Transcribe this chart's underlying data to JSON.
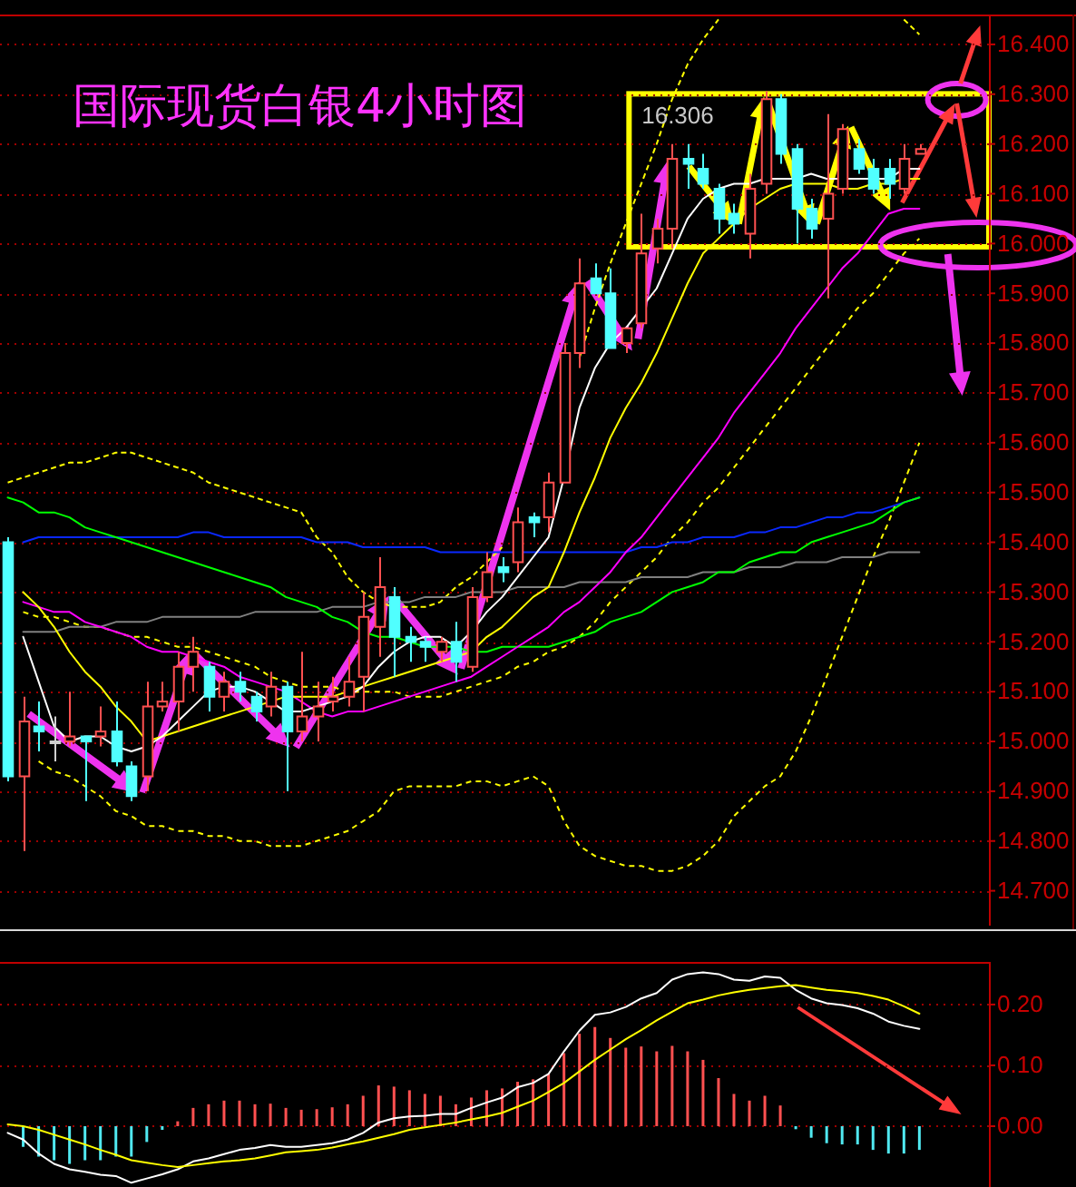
{
  "chart_data": [
    {
      "type": "candlestick",
      "title": "国际现货白银4小时图",
      "categories": [
        null,
        null,
        null,
        null,
        null,
        null,
        null,
        null,
        null,
        null,
        null,
        null,
        null,
        null,
        null,
        null,
        null,
        null,
        null,
        null,
        null,
        null,
        null,
        null,
        null,
        null,
        null,
        null,
        null,
        null,
        null,
        null,
        null,
        null,
        null,
        null,
        null,
        null,
        null,
        null,
        null,
        null,
        null,
        null,
        null,
        null,
        null,
        null,
        null,
        null,
        null,
        null,
        null,
        null,
        null,
        null,
        null,
        null,
        null,
        null
      ],
      "ohlc": [
        [
          15.4,
          15.41,
          14.92,
          14.93
        ],
        [
          14.93,
          15.09,
          14.78,
          15.04
        ],
        [
          15.03,
          15.08,
          14.98,
          15.02
        ],
        [
          15.0,
          15.05,
          14.96,
          15.0
        ],
        [
          15.0,
          15.1,
          14.99,
          15.01
        ],
        [
          15.01,
          15.01,
          14.88,
          15.0
        ],
        [
          15.01,
          15.07,
          14.99,
          15.02
        ],
        [
          15.02,
          15.08,
          14.95,
          14.96
        ],
        [
          14.95,
          14.96,
          14.88,
          14.89
        ],
        [
          14.93,
          15.12,
          14.9,
          15.07
        ],
        [
          15.07,
          15.12,
          15.06,
          15.08
        ],
        [
          15.08,
          15.18,
          15.02,
          15.15
        ],
        [
          15.15,
          15.21,
          15.1,
          15.18
        ],
        [
          15.15,
          15.16,
          15.06,
          15.09
        ],
        [
          15.09,
          15.14,
          15.06,
          15.12
        ],
        [
          15.12,
          15.14,
          15.08,
          15.1
        ],
        [
          15.09,
          15.1,
          15.04,
          15.06
        ],
        [
          15.07,
          15.14,
          15.05,
          15.11
        ],
        [
          15.11,
          15.12,
          14.9,
          15.02
        ],
        [
          15.02,
          15.18,
          15.0,
          15.05
        ],
        [
          15.05,
          15.12,
          15.0,
          15.07
        ],
        [
          15.08,
          15.13,
          15.06,
          15.09
        ],
        [
          15.09,
          15.17,
          15.07,
          15.12
        ],
        [
          15.13,
          15.3,
          15.06,
          15.25
        ],
        [
          15.23,
          15.37,
          15.17,
          15.31
        ],
        [
          15.29,
          15.31,
          15.13,
          15.21
        ],
        [
          15.21,
          15.23,
          15.16,
          15.2
        ],
        [
          15.2,
          15.21,
          15.16,
          15.19
        ],
        [
          15.18,
          15.21,
          15.16,
          15.2
        ],
        [
          15.2,
          15.24,
          15.12,
          15.16
        ],
        [
          15.15,
          15.31,
          15.14,
          15.29
        ],
        [
          15.29,
          15.38,
          15.28,
          15.34
        ],
        [
          15.35,
          15.37,
          15.32,
          15.34
        ],
        [
          15.36,
          15.47,
          15.34,
          15.44
        ],
        [
          15.45,
          15.46,
          15.41,
          15.44
        ],
        [
          15.45,
          15.54,
          15.42,
          15.52
        ],
        [
          15.52,
          15.8,
          15.52,
          15.78
        ],
        [
          15.78,
          15.97,
          15.75,
          15.92
        ],
        [
          15.93,
          15.96,
          15.9,
          15.9
        ],
        [
          15.9,
          15.95,
          15.79,
          15.79
        ],
        [
          15.8,
          15.83,
          15.78,
          15.83
        ],
        [
          15.84,
          16.06,
          15.83,
          15.98
        ],
        [
          15.99,
          16.05,
          15.96,
          16.03
        ],
        [
          16.03,
          16.2,
          15.99,
          16.17
        ],
        [
          16.17,
          16.2,
          16.11,
          16.16
        ],
        [
          16.15,
          16.18,
          16.11,
          16.12
        ],
        [
          16.11,
          16.12,
          16.02,
          16.05
        ],
        [
          16.06,
          16.08,
          16.02,
          16.04
        ],
        [
          16.02,
          16.14,
          15.97,
          16.11
        ],
        [
          16.12,
          16.306,
          16.1,
          16.29
        ],
        [
          16.29,
          16.3,
          16.16,
          16.18
        ],
        [
          16.19,
          16.2,
          16.0,
          16.07
        ],
        [
          16.07,
          16.09,
          16.01,
          16.03
        ],
        [
          16.05,
          16.26,
          15.89,
          16.1
        ],
        [
          16.11,
          16.24,
          16.1,
          16.23
        ],
        [
          16.19,
          16.21,
          16.14,
          16.15
        ],
        [
          16.15,
          16.17,
          16.1,
          16.11
        ],
        [
          16.15,
          16.17,
          16.09,
          16.12
        ],
        [
          16.11,
          16.2,
          16.1,
          16.17
        ],
        [
          16.18,
          16.2,
          16.18,
          16.19
        ]
      ],
      "series": [
        {
          "type": "line",
          "color": "#ffff00",
          "line_style": "dashed",
          "values": [
            15.52,
            15.53,
            15.54,
            15.55,
            15.56,
            15.56,
            15.57,
            15.58,
            15.58,
            15.57,
            15.56,
            15.55,
            15.54,
            15.52,
            15.51,
            15.5,
            15.49,
            15.48,
            15.47,
            15.46,
            15.41,
            15.38,
            15.33,
            15.3,
            15.28,
            15.27,
            15.27,
            15.27,
            15.28,
            15.31,
            15.33,
            15.36,
            15.39,
            null,
            null,
            null,
            null,
            15.77,
            15.87,
            15.96,
            16.04,
            16.12,
            16.2,
            16.29,
            16.36,
            16.41,
            16.45,
            null,
            null,
            null,
            null,
            null,
            null,
            null,
            null,
            null,
            null,
            null,
            16.45,
            16.42
          ]
        },
        {
          "type": "line",
          "color": "#ffff00",
          "line_style": "dashed",
          "values": [
            null,
            null,
            14.96,
            14.94,
            14.93,
            14.91,
            14.89,
            14.86,
            14.85,
            14.83,
            14.83,
            14.82,
            14.82,
            14.81,
            14.81,
            14.8,
            14.8,
            14.79,
            14.79,
            14.79,
            14.8,
            14.81,
            14.82,
            14.84,
            14.86,
            14.9,
            14.91,
            14.91,
            14.91,
            14.91,
            14.92,
            14.92,
            14.91,
            14.92,
            14.93,
            14.91,
            14.84,
            14.79,
            14.77,
            14.76,
            14.75,
            14.75,
            14.74,
            14.74,
            14.75,
            14.77,
            14.8,
            14.85,
            14.88,
            14.91,
            14.93,
            14.98,
            15.05,
            15.13,
            15.21,
            15.29,
            15.37,
            15.44,
            15.52,
            15.6
          ]
        },
        {
          "type": "line",
          "color": "#ffff00",
          "line_style": "dashed",
          "values": [
            null,
            15.26,
            15.25,
            15.25,
            15.24,
            15.23,
            15.23,
            15.22,
            15.21,
            15.21,
            15.2,
            15.19,
            15.19,
            15.18,
            15.17,
            15.16,
            15.15,
            15.13,
            15.12,
            15.11,
            15.11,
            15.11,
            15.1,
            15.1,
            15.1,
            15.1,
            15.09,
            15.09,
            15.09,
            15.1,
            15.11,
            15.12,
            15.13,
            15.15,
            15.16,
            15.18,
            15.19,
            15.21,
            15.24,
            15.28,
            15.31,
            15.34,
            15.37,
            15.41,
            15.44,
            15.48,
            15.51,
            15.55,
            15.59,
            15.63,
            15.67,
            15.71,
            15.75,
            15.79,
            15.83,
            15.87,
            15.9,
            15.94,
            15.98,
            16.01
          ]
        },
        {
          "type": "line",
          "color": "#808080",
          "values": [
            null,
            15.22,
            15.22,
            15.22,
            15.23,
            15.23,
            15.23,
            15.24,
            15.24,
            15.24,
            15.25,
            15.25,
            15.25,
            15.25,
            15.25,
            15.25,
            15.26,
            15.26,
            15.26,
            15.26,
            15.26,
            15.27,
            15.27,
            15.27,
            15.28,
            15.28,
            15.28,
            15.29,
            15.29,
            15.29,
            15.3,
            15.3,
            15.3,
            15.31,
            15.31,
            15.31,
            15.31,
            15.32,
            15.32,
            15.32,
            15.32,
            15.33,
            15.33,
            15.33,
            15.33,
            15.34,
            15.34,
            15.34,
            15.35,
            15.35,
            15.35,
            15.36,
            15.36,
            15.36,
            15.37,
            15.37,
            15.37,
            15.38,
            15.38,
            15.38
          ]
        },
        {
          "type": "line",
          "color": "#0a28ff",
          "values": [
            null,
            15.4,
            15.41,
            15.41,
            15.41,
            15.41,
            15.41,
            15.41,
            15.41,
            15.41,
            15.41,
            15.41,
            15.42,
            15.42,
            15.41,
            15.41,
            15.41,
            15.41,
            15.41,
            15.41,
            15.4,
            15.4,
            15.4,
            15.39,
            15.39,
            15.39,
            15.39,
            15.39,
            15.38,
            15.38,
            15.38,
            15.38,
            15.38,
            15.38,
            15.38,
            15.38,
            15.38,
            15.38,
            15.38,
            15.38,
            15.38,
            15.39,
            15.39,
            15.4,
            15.4,
            15.41,
            15.41,
            15.41,
            15.42,
            15.42,
            15.43,
            15.43,
            15.44,
            15.45,
            15.45,
            15.46,
            15.46,
            15.47,
            15.48,
            15.49
          ]
        },
        {
          "type": "line",
          "color": "#00ff00",
          "values": [
            15.49,
            15.48,
            15.46,
            15.46,
            15.45,
            15.43,
            15.42,
            15.41,
            15.4,
            15.39,
            15.38,
            15.37,
            15.36,
            15.35,
            15.34,
            15.33,
            15.32,
            15.31,
            15.29,
            15.28,
            15.27,
            15.25,
            15.24,
            15.22,
            15.21,
            15.21,
            15.2,
            15.19,
            15.19,
            15.19,
            15.18,
            15.18,
            15.19,
            15.19,
            15.19,
            15.19,
            15.2,
            15.21,
            15.22,
            15.24,
            15.25,
            15.26,
            15.28,
            15.3,
            15.31,
            15.32,
            15.34,
            15.34,
            15.36,
            15.37,
            15.38,
            15.38,
            15.4,
            15.41,
            15.42,
            15.43,
            15.44,
            15.46,
            15.48,
            15.49
          ]
        },
        {
          "type": "line",
          "color": "#ff00ff",
          "values": [
            null,
            15.28,
            15.27,
            15.26,
            15.26,
            15.24,
            15.23,
            15.22,
            15.21,
            15.19,
            15.18,
            15.18,
            15.17,
            15.16,
            15.15,
            15.13,
            15.12,
            15.11,
            15.1,
            15.08,
            15.06,
            15.05,
            15.06,
            15.06,
            15.07,
            15.08,
            15.09,
            15.1,
            15.11,
            15.12,
            15.13,
            15.15,
            15.17,
            15.19,
            15.21,
            15.23,
            15.26,
            15.28,
            15.31,
            15.34,
            15.38,
            15.41,
            15.45,
            15.49,
            15.53,
            15.57,
            15.61,
            15.66,
            15.7,
            15.74,
            15.78,
            15.83,
            15.87,
            15.91,
            15.95,
            15.98,
            16.02,
            16.06,
            16.07,
            16.07
          ]
        },
        {
          "type": "line",
          "color": "#ffff00",
          "values": [
            null,
            15.3,
            15.27,
            15.23,
            15.18,
            15.14,
            15.11,
            15.07,
            15.04,
            15.0,
            15.01,
            15.02,
            15.03,
            15.04,
            15.05,
            15.06,
            15.07,
            15.08,
            15.09,
            15.09,
            15.09,
            15.09,
            15.1,
            15.11,
            15.12,
            15.13,
            15.14,
            15.15,
            15.16,
            15.17,
            15.18,
            15.21,
            15.23,
            15.26,
            15.29,
            15.31,
            15.38,
            15.46,
            15.53,
            15.61,
            15.67,
            15.72,
            15.78,
            15.85,
            15.92,
            15.98,
            16.01,
            16.04,
            16.07,
            16.09,
            16.11,
            16.12,
            16.12,
            16.12,
            16.11,
            16.11,
            16.12,
            16.12,
            16.13,
            16.13
          ]
        },
        {
          "type": "line",
          "color": "#ffffff",
          "values": [
            null,
            15.21,
            15.12,
            15.03,
            15.0,
            15.01,
            15.01,
            14.99,
            14.98,
            14.99,
            15.01,
            15.04,
            15.07,
            15.1,
            15.11,
            15.11,
            15.1,
            15.08,
            15.06,
            15.06,
            15.07,
            15.08,
            15.09,
            15.11,
            15.15,
            15.18,
            15.2,
            15.21,
            15.21,
            15.19,
            15.22,
            15.26,
            15.29,
            15.33,
            15.37,
            15.41,
            15.53,
            15.67,
            15.75,
            15.8,
            15.83,
            15.87,
            15.91,
            15.98,
            16.05,
            16.09,
            16.11,
            16.12,
            16.12,
            16.13,
            16.13,
            16.13,
            16.14,
            16.13,
            16.13,
            16.13,
            16.13,
            16.13,
            16.15,
            16.15
          ]
        }
      ],
      "ylim": [
        14.63,
        16.46
      ],
      "yticks": [
        {
          "value": 14.7,
          "label": "14.700"
        },
        {
          "value": 14.8,
          "label": "14.800"
        },
        {
          "value": 14.9,
          "label": "14.900"
        },
        {
          "value": 15.0,
          "label": "15.000"
        },
        {
          "value": 15.1,
          "label": "15.100"
        },
        {
          "value": 15.2,
          "label": "15.200"
        },
        {
          "value": 15.3,
          "label": "15.300"
        },
        {
          "value": 15.4,
          "label": "15.400"
        },
        {
          "value": 15.5,
          "label": "15.500"
        },
        {
          "value": 15.6,
          "label": "15.600"
        },
        {
          "value": 15.7,
          "label": "15.700"
        },
        {
          "value": 15.8,
          "label": "15.800"
        },
        {
          "value": 15.9,
          "label": "15.900"
        },
        {
          "value": 16.0,
          "label": "16.000"
        },
        {
          "value": 16.1,
          "label": "16.100"
        },
        {
          "value": 16.2,
          "label": "16.200"
        },
        {
          "value": 16.3,
          "label": "16.300"
        },
        {
          "value": 16.4,
          "label": "16.400"
        }
      ],
      "grid": "y",
      "tick_labels": "y",
      "annotations": [
        "16.306"
      ]
    },
    {
      "type": "bar",
      "categories": [
        null,
        null,
        null,
        null,
        null,
        null,
        null,
        null,
        null,
        null,
        null,
        null,
        null,
        null,
        null,
        null,
        null,
        null,
        null,
        null,
        null,
        null,
        null,
        null,
        null,
        null,
        null,
        null,
        null,
        null,
        null,
        null,
        null,
        null,
        null,
        null,
        null,
        null,
        null,
        null,
        null,
        null,
        null,
        null,
        null,
        null,
        null,
        null,
        null,
        null,
        null,
        null,
        null,
        null,
        null,
        null,
        null,
        null,
        null,
        null
      ],
      "series": [
        {
          "type": "bar",
          "values": [
            null,
            -0.034,
            -0.05,
            -0.056,
            -0.062,
            -0.056,
            -0.056,
            -0.05,
            -0.05,
            -0.026,
            -0.006,
            0.008,
            0.03,
            0.036,
            0.042,
            0.042,
            0.036,
            0.037,
            0.03,
            0.027,
            0.028,
            0.031,
            0.036,
            0.05,
            0.067,
            0.065,
            0.059,
            0.053,
            0.05,
            0.036,
            0.047,
            0.059,
            0.062,
            0.073,
            0.077,
            0.086,
            0.12,
            0.152,
            0.163,
            0.145,
            0.129,
            0.131,
            0.123,
            0.132,
            0.123,
            0.109,
            0.079,
            0.053,
            0.042,
            0.05,
            0.034,
            -0.005,
            -0.019,
            -0.028,
            -0.03,
            -0.03,
            -0.039,
            -0.045,
            -0.045,
            -0.039
          ],
          "colors": [
            null,
            "#50e8f0",
            "#50e8f0",
            "#50e8f0",
            "#50e8f0",
            "#50e8f0",
            "#50e8f0",
            "#50e8f0",
            "#50e8f0",
            "#50e8f0",
            "#50e8f0",
            "#ff5050",
            "#ff5050",
            "#ff5050",
            "#ff5050",
            "#ff5050",
            "#ff5050",
            "#ff5050",
            "#ff5050",
            "#ff5050",
            "#ff5050",
            "#ff5050",
            "#ff5050",
            "#ff5050",
            "#ff5050",
            "#ff5050",
            "#ff5050",
            "#ff5050",
            "#ff5050",
            "#ff5050",
            "#ff5050",
            "#ff5050",
            "#ff5050",
            "#ff5050",
            "#ff5050",
            "#ff5050",
            "#ff5050",
            "#ff5050",
            "#ff5050",
            "#ff5050",
            "#ff5050",
            "#ff5050",
            "#ff5050",
            "#ff5050",
            "#ff5050",
            "#ff5050",
            "#ff5050",
            "#ff5050",
            "#ff5050",
            "#ff5050",
            "#ff5050",
            "#50e8f0",
            "#50e8f0",
            "#50e8f0",
            "#50e8f0",
            "#50e8f0",
            "#50e8f0",
            "#50e8f0",
            "#50e8f0",
            "#50e8f0"
          ]
        },
        {
          "type": "line",
          "color": "#ffffff",
          "values": [
            -0.011,
            -0.022,
            -0.045,
            -0.062,
            -0.071,
            -0.075,
            -0.08,
            -0.082,
            -0.093,
            -0.086,
            -0.079,
            -0.071,
            -0.058,
            -0.053,
            -0.046,
            -0.039,
            -0.036,
            -0.031,
            -0.034,
            -0.034,
            -0.031,
            -0.028,
            -0.022,
            -0.011,
            0.006,
            0.013,
            0.016,
            0.017,
            0.02,
            0.02,
            0.03,
            0.039,
            0.047,
            0.064,
            0.071,
            0.086,
            0.123,
            0.157,
            0.183,
            0.187,
            0.196,
            0.21,
            0.219,
            0.241,
            0.25,
            0.253,
            0.25,
            0.241,
            0.239,
            0.246,
            0.244,
            0.224,
            0.21,
            0.202,
            0.199,
            0.194,
            0.185,
            0.172,
            0.165,
            0.16
          ]
        },
        {
          "type": "line",
          "color": "#ffff00",
          "values": [
            0.003,
            0.0,
            -0.006,
            -0.014,
            -0.022,
            -0.03,
            -0.039,
            -0.047,
            -0.056,
            -0.06,
            -0.064,
            -0.067,
            -0.064,
            -0.061,
            -0.058,
            -0.056,
            -0.053,
            -0.048,
            -0.043,
            -0.041,
            -0.039,
            -0.035,
            -0.03,
            -0.025,
            -0.019,
            -0.013,
            -0.006,
            -0.002,
            0.002,
            0.006,
            0.011,
            0.016,
            0.022,
            0.032,
            0.042,
            0.056,
            0.071,
            0.09,
            0.109,
            0.126,
            0.143,
            0.158,
            0.174,
            0.188,
            0.202,
            0.208,
            0.215,
            0.22,
            0.224,
            0.227,
            0.23,
            0.232,
            0.228,
            0.224,
            0.222,
            0.219,
            0.214,
            0.208,
            0.197,
            0.185
          ]
        }
      ],
      "ylim": [
        -0.1,
        0.27
      ],
      "yticks": [
        {
          "value": 0,
          "label": "0.00"
        },
        {
          "value": 0.1,
          "label": "0.10"
        },
        {
          "value": 0.2,
          "label": "0.20"
        }
      ],
      "grid": "y",
      "tick_labels": "y"
    }
  ]
}
